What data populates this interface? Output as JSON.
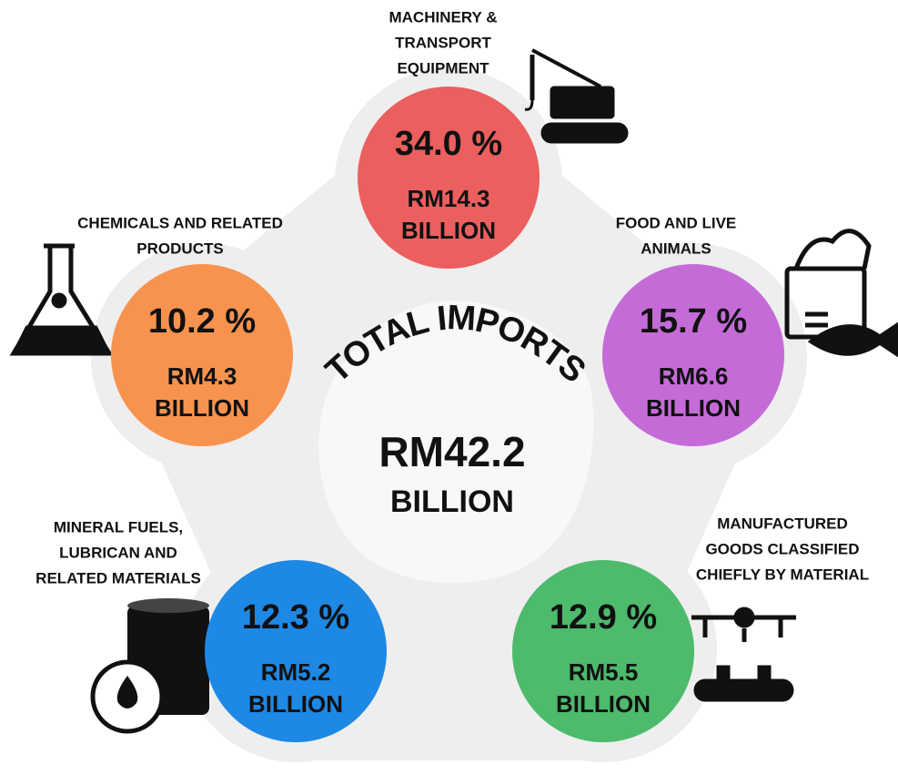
{
  "center": {
    "title": "TOTAL IMPORTS",
    "amount": "RM42.2",
    "unit": "BILLION"
  },
  "segments": [
    {
      "label": [
        "MACHINERY &",
        "TRANSPORT",
        "EQUIPMENT"
      ],
      "percent": "34.0 %",
      "amount": "RM14.3",
      "unit": "BILLION",
      "color": "#ec5f5f"
    },
    {
      "label": [
        "CHEMICALS AND RELATED",
        "PRODUCTS"
      ],
      "percent": "10.2 %",
      "amount": "RM4.3",
      "unit": "BILLION",
      "color": "#f7934f"
    },
    {
      "label": [
        "FOOD AND LIVE",
        "ANIMALS"
      ],
      "percent": "15.7 %",
      "amount": "RM6.6",
      "unit": "BILLION",
      "color": "#c56bd8"
    },
    {
      "label": [
        "MINERAL FUELS,",
        "LUBRICAN AND",
        "RELATED MATERIALS"
      ],
      "percent": "12.3 %",
      "amount": "RM5.2",
      "unit": "BILLION",
      "color": "#1e88e5"
    },
    {
      "label": [
        "MANUFACTURED",
        "GOODS CLASSIFIED",
        "CHIEFLY BY MATERIAL"
      ],
      "percent": "12.9 %",
      "amount": "RM5.5",
      "unit": "BILLION",
      "color": "#4dba6c"
    }
  ]
}
